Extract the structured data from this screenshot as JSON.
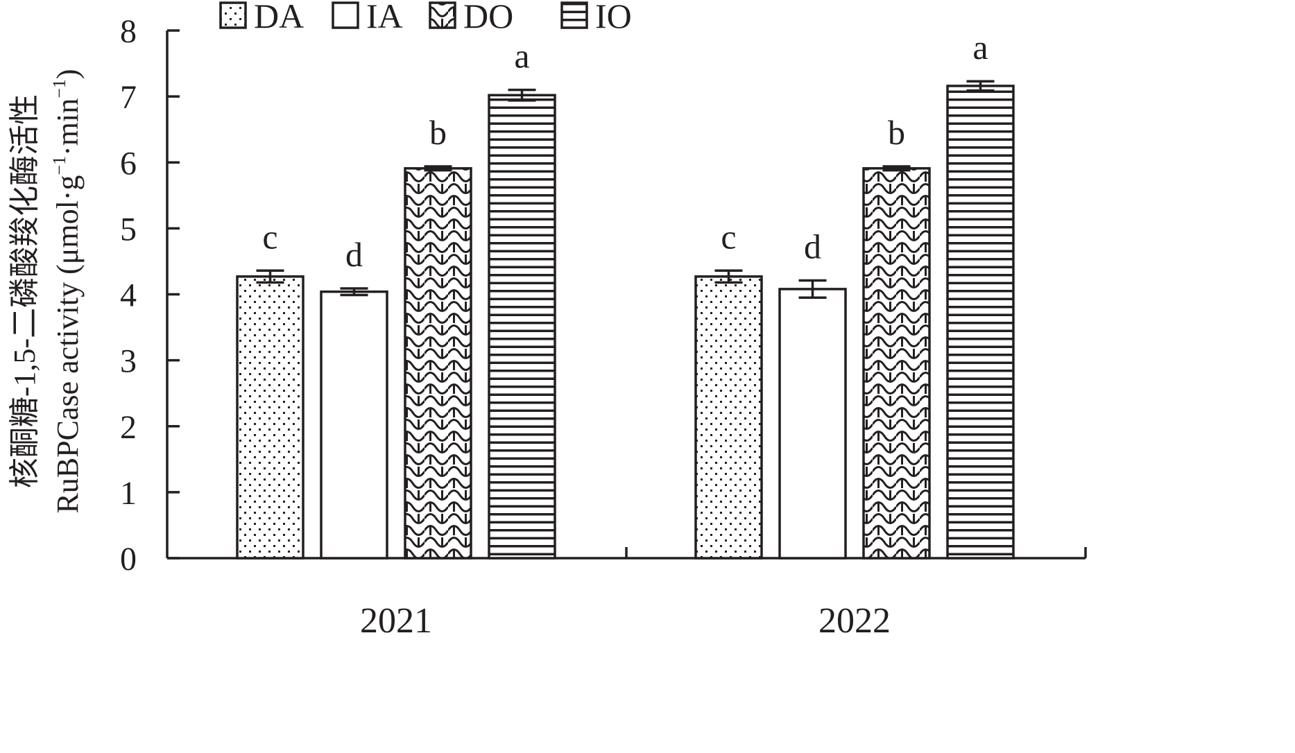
{
  "chart_data": {
    "type": "bar",
    "title": "",
    "xlabel": "",
    "ylabel_cn": "核酮糖-1,5-二磷酸羧化酶活性",
    "ylabel_en": "RuBPCase activity (μmol·g",
    "ylabel_exp1": "−1",
    "ylabel_mid": "·min",
    "ylabel_exp2": "−1",
    "ylabel_close": ")",
    "ylim": [
      0,
      8
    ],
    "yticks": [
      "0",
      "1",
      "2",
      "3",
      "4",
      "5",
      "6",
      "7",
      "8"
    ],
    "categories": [
      "2021",
      "2022"
    ],
    "legend_position": "top",
    "series": [
      {
        "name": "DA",
        "pattern": "dots",
        "values": [
          4.27,
          4.27
        ],
        "errors": [
          0.09,
          0.09
        ],
        "letters": [
          "c",
          "c"
        ]
      },
      {
        "name": "IA",
        "pattern": "blank",
        "values": [
          4.04,
          4.08
        ],
        "errors": [
          0.05,
          0.13
        ],
        "letters": [
          "d",
          "d"
        ]
      },
      {
        "name": "DO",
        "pattern": "scales",
        "values": [
          5.91,
          5.91
        ],
        "errors": [
          0.03,
          0.03
        ],
        "letters": [
          "b",
          "b"
        ]
      },
      {
        "name": "IO",
        "pattern": "hlines",
        "values": [
          7.02,
          7.16
        ],
        "errors": [
          0.08,
          0.07
        ],
        "letters": [
          "a",
          "a"
        ]
      }
    ]
  },
  "colors": {
    "ink": "#231f20",
    "background": "#ffffff"
  }
}
